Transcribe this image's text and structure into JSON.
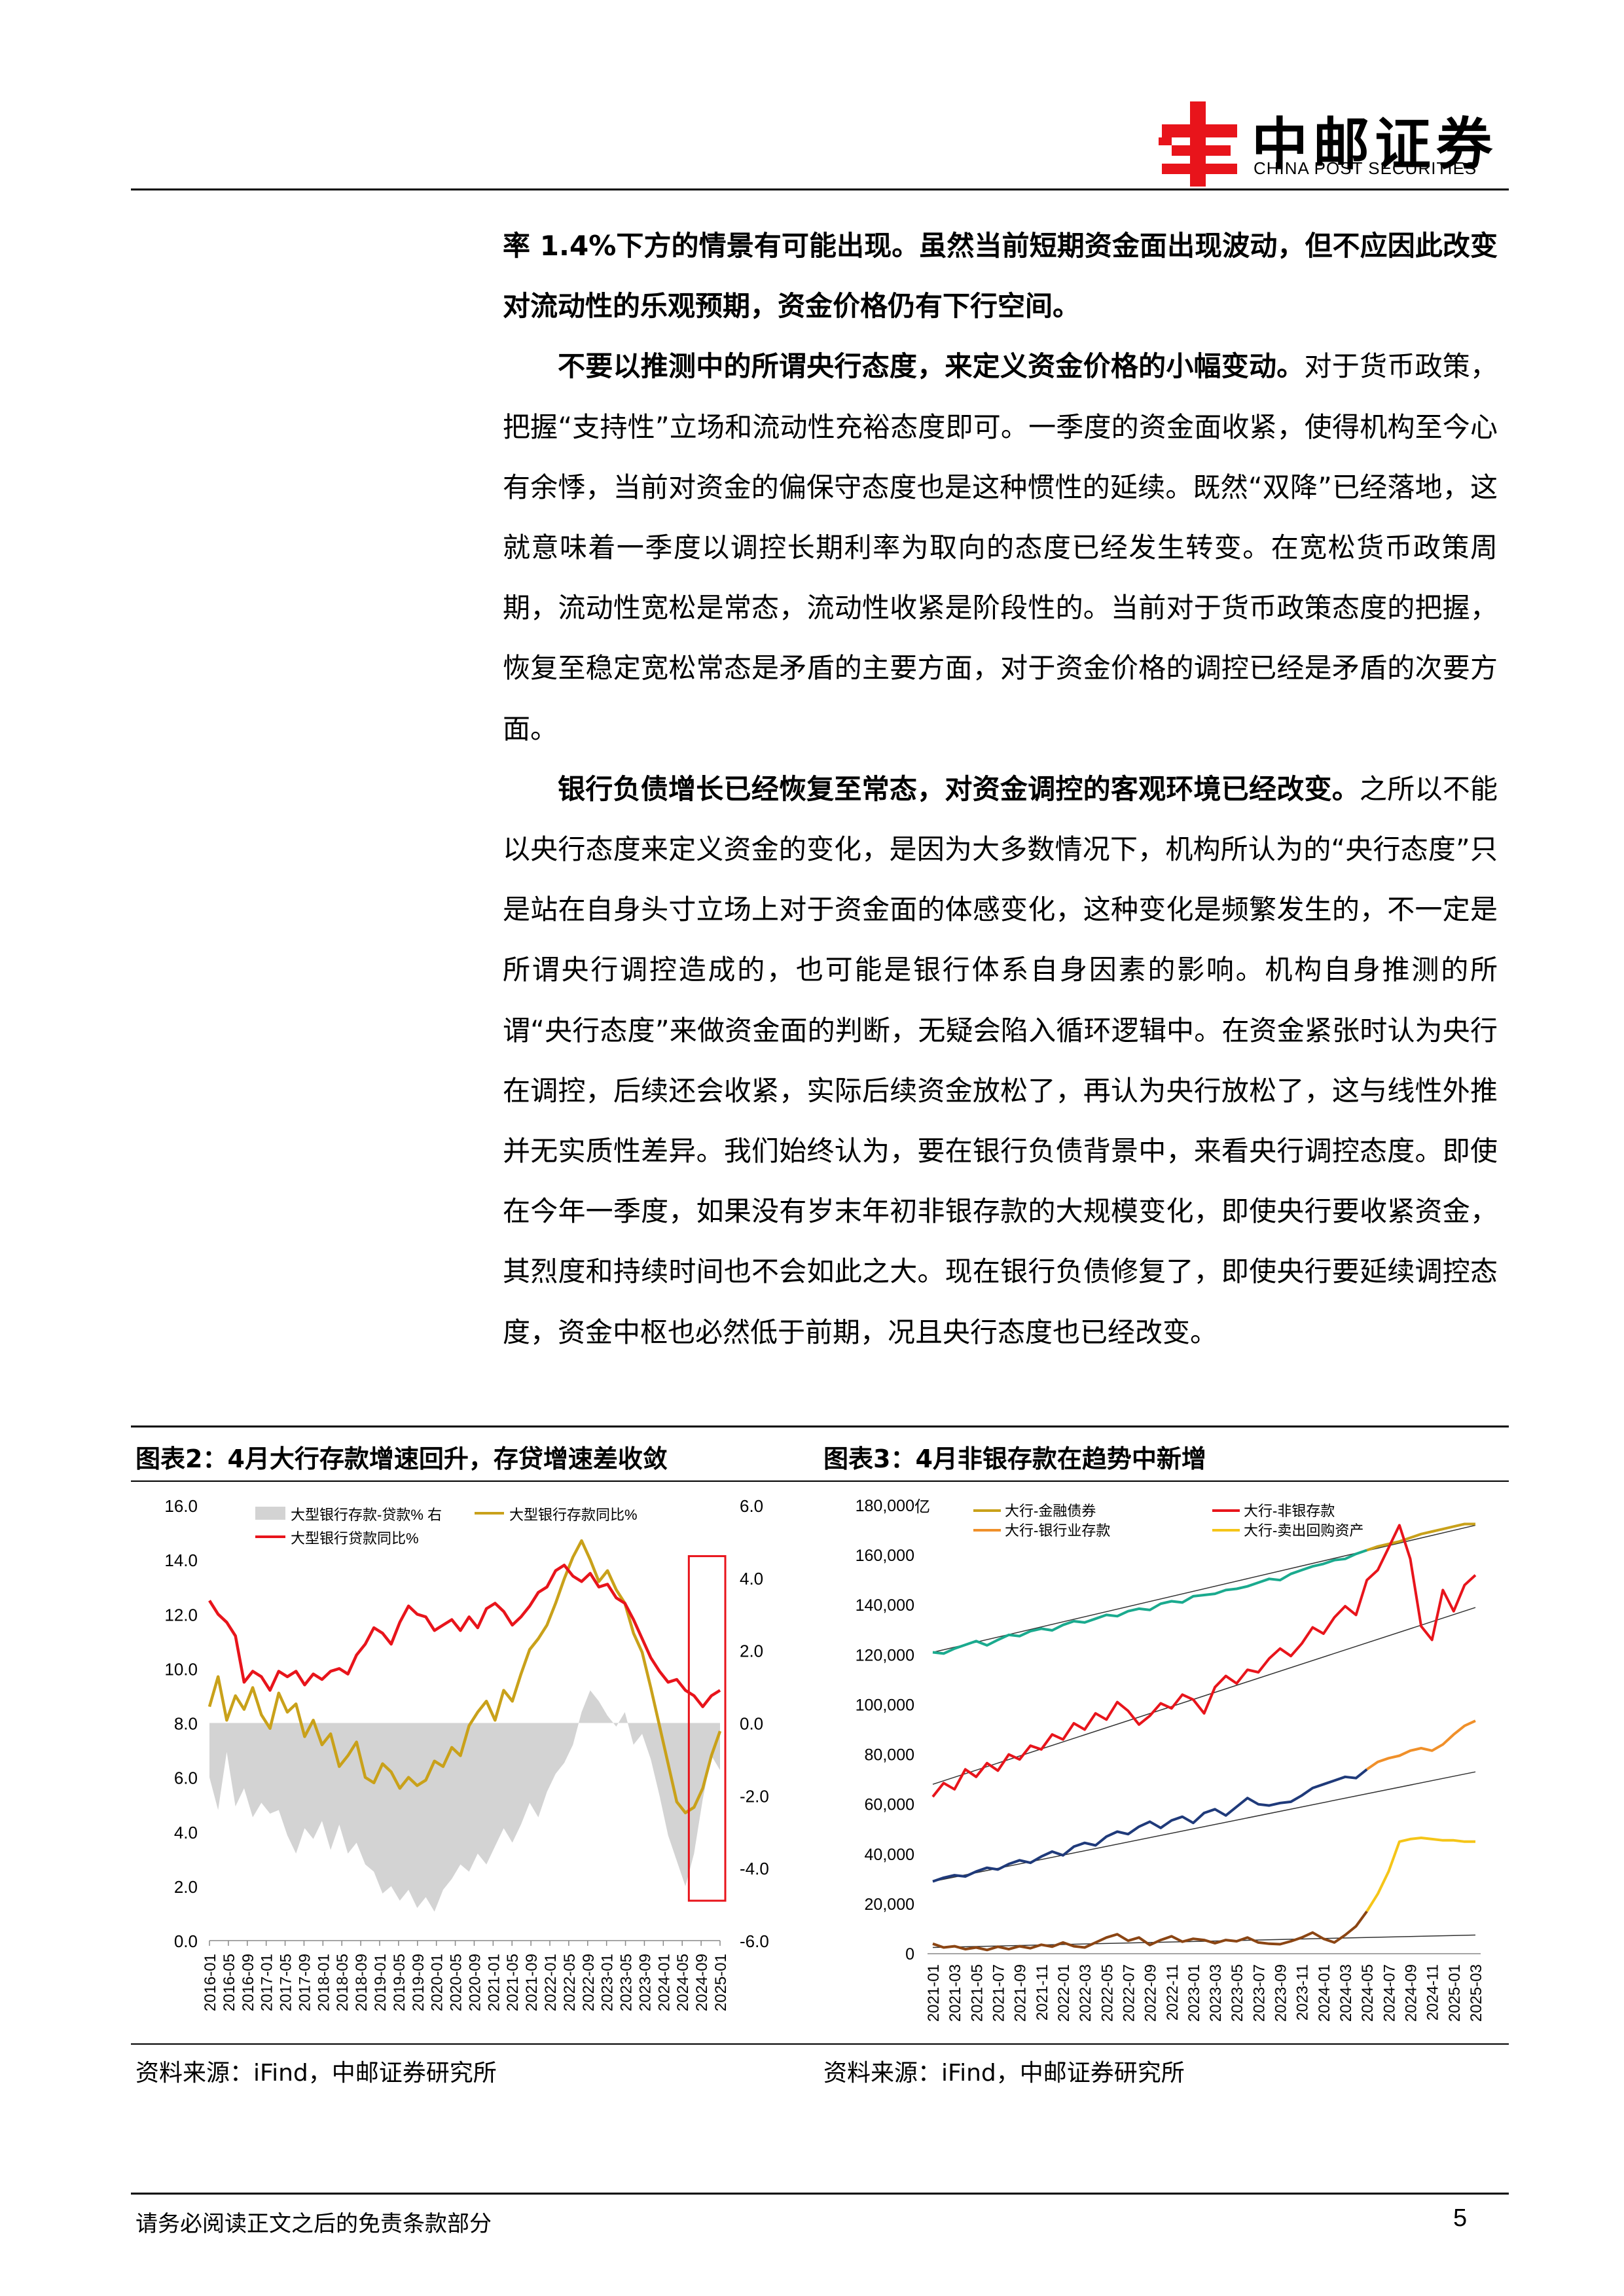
{
  "header": {
    "logo_zh": "中邮证券",
    "logo_en": "CHINA POST SECURITIES"
  },
  "body": {
    "para1": "率 1.4%下方的情景有可能出现。虽然当前短期资金面出现波动，但不应因此改变对流动性的乐观预期，资金价格仍有下行空间。",
    "para2_lead": "不要以推测中的所谓央行态度，来定义资金价格的小幅变动。",
    "para2_rest": "对于货币政策，把握“支持性”立场和流动性充裕态度即可。一季度的资金面收紧，使得机构至今心有余悸，当前对资金的偏保守态度也是这种惯性的延续。既然“双降”已经落地，这就意味着一季度以调控长期利率为取向的态度已经发生转变。在宽松货币政策周期，流动性宽松是常态，流动性收紧是阶段性的。当前对于货币政策态度的把握，恢复至稳定宽松常态是矛盾的主要方面，对于资金价格的调控已经是矛盾的次要方面。",
    "para3_lead": "银行负债增长已经恢复至常态，对资金调控的客观环境已经改变。",
    "para3_rest": "之所以不能以央行态度来定义资金的变化，是因为大多数情况下，机构所认为的“央行态度”只是站在自身头寸立场上对于资金面的体感变化，这种变化是频繁发生的，不一定是所谓央行调控造成的，也可能是银行体系自身因素的影响。机构自身推测的所谓“央行态度”来做资金面的判断，无疑会陷入循环逻辑中。在资金紧张时认为央行在调控，后续还会收紧，实际后续资金放松了，再认为央行放松了，这与线性外推并无实质性差异。我们始终认为，要在银行负债背景中，来看央行调控态度。即使在今年一季度，如果没有岁末年初非银存款的大规模变化，即使央行要收紧资金，其烈度和持续时间也不会如此之大。现在银行负债修复了，即使央行要延续调控态度，资金中枢也必然低于前期，况且央行态度也已经改变。"
  },
  "figures": {
    "fig2_title": "图表2：4月大行存款增速回升，存贷增速差收敛",
    "fig3_title": "图表3：4月非银存款在趋势中新增",
    "fig2_source": "资料来源：iFind，中邮证券研究所",
    "fig3_source": "资料来源：iFind，中邮证券研究所"
  },
  "chart_data": [
    {
      "type": "line",
      "legend": [
        "大型银行存款-贷款% 右",
        "大型银行存款同比%",
        "大型银行贷款同比%"
      ],
      "ylim_left": [
        0,
        16
      ],
      "yticks_left": [
        "16.0",
        "14.0",
        "12.0",
        "10.0",
        "8.0",
        "6.0",
        "4.0",
        "2.0",
        "0.0"
      ],
      "ylim_right": [
        -6,
        6
      ],
      "yticks_right": [
        "6.0",
        "4.0",
        "2.0",
        "0.0",
        "-2.0",
        "-4.0",
        "-6.0"
      ],
      "xticks": [
        "2016-01",
        "2016-05",
        "2016-09",
        "2017-01",
        "2017-05",
        "2017-09",
        "2018-01",
        "2018-05",
        "2018-09",
        "2019-01",
        "2019-05",
        "2019-09",
        "2020-01",
        "2020-05",
        "2020-09",
        "2021-01",
        "2021-05",
        "2021-09",
        "2022-01",
        "2022-05",
        "2022-09",
        "2023-01",
        "2023-05",
        "2023-09",
        "2024-01",
        "2024-05",
        "2024-09",
        "2025-01"
      ],
      "colors": {
        "gap": "#d3d3d3",
        "deposit": "#c9a11a",
        "loan": "#e8141b",
        "highlight": "#e8141b"
      },
      "series": [
        {
          "name": "大型银行存款-贷款% 右",
          "values": [
            -1.5,
            -2.4,
            -0.8,
            -2.3,
            -1.8,
            -2.6,
            -2.2,
            -2.5,
            -2.4,
            -3.1,
            -3.6,
            -2.9,
            -3.2,
            -2.7,
            -3.5,
            -2.8,
            -3.6,
            -3.3,
            -3.9,
            -4.1,
            -4.7,
            -4.5,
            -4.9,
            -4.6,
            -5.1,
            -4.8,
            -5.2,
            -4.6,
            -4.3,
            -3.9,
            -4.1,
            -3.6,
            -3.9,
            -3.4,
            -2.9,
            -3.3,
            -2.8,
            -2.2,
            -2.6,
            -1.9,
            -1.4,
            -1.1,
            -0.6,
            0.3,
            0.9,
            0.6,
            0.2,
            -0.1,
            0.3,
            -0.6,
            -0.3,
            -1.0,
            -2.0,
            -3.1,
            -3.8,
            -4.5,
            -3.6,
            -2.1,
            -0.9,
            -1.3
          ]
        },
        {
          "name": "大型银行存款同比%",
          "values": [
            8.6,
            9.7,
            8.1,
            9.0,
            8.5,
            9.3,
            8.3,
            7.8,
            9.1,
            8.4,
            8.7,
            7.5,
            8.1,
            7.2,
            7.6,
            6.4,
            6.8,
            7.3,
            6.0,
            5.8,
            6.5,
            6.2,
            5.6,
            6.0,
            5.7,
            5.9,
            6.6,
            6.4,
            7.1,
            6.8,
            7.9,
            8.4,
            8.8,
            8.1,
            9.2,
            8.8,
            9.8,
            10.7,
            11.1,
            11.6,
            12.4,
            13.3,
            14.1,
            14.7,
            14.0,
            13.2,
            13.6,
            12.9,
            12.4,
            11.3,
            10.6,
            9.3,
            7.9,
            6.5,
            5.1,
            4.7,
            4.9,
            5.6,
            6.8,
            7.7
          ]
        },
        {
          "name": "大型银行贷款同比%",
          "values": [
            12.5,
            12.0,
            11.7,
            11.2,
            9.5,
            9.9,
            9.7,
            9.2,
            9.9,
            9.7,
            9.9,
            9.4,
            9.8,
            9.6,
            9.9,
            10.0,
            9.8,
            10.5,
            10.9,
            11.5,
            11.3,
            10.9,
            11.7,
            12.3,
            12.0,
            11.9,
            11.4,
            11.6,
            11.8,
            11.4,
            11.9,
            11.5,
            12.2,
            12.4,
            12.1,
            11.6,
            11.9,
            12.3,
            12.8,
            13.0,
            13.6,
            13.8,
            13.4,
            13.2,
            13.5,
            13.0,
            13.1,
            12.6,
            12.4,
            11.8,
            11.1,
            10.4,
            9.9,
            9.5,
            9.6,
            9.2,
            9.0,
            8.6,
            9.0,
            9.2
          ]
        }
      ]
    },
    {
      "type": "line",
      "unit_label": "亿",
      "legend": [
        "大行-金融债券",
        "大行-银行业存款",
        "大行-非银存款",
        "大行-卖出回购资产"
      ],
      "ylim": [
        0,
        180000
      ],
      "yticks": [
        "180,000",
        "160,000",
        "140,000",
        "120,000",
        "100,000",
        "80,000",
        "60,000",
        "40,000",
        "20,000",
        "0"
      ],
      "xticks": [
        "2021-01",
        "2021-03",
        "2021-05",
        "2021-07",
        "2021-09",
        "2021-11",
        "2022-01",
        "2022-03",
        "2022-05",
        "2022-07",
        "2022-09",
        "2022-11",
        "2023-01",
        "2023-03",
        "2023-05",
        "2023-07",
        "2023-09",
        "2023-11",
        "2024-01",
        "2024-03",
        "2024-05",
        "2024-07",
        "2024-09",
        "2024-11",
        "2025-01",
        "2025-03"
      ],
      "colors": {
        "bonds": "#c9a11a",
        "interbank": "#f0902a",
        "nonbank": "#e8141b",
        "repo": "#f5c518",
        "bonds_before": "#1aaa8e",
        "interbank_before": "#1f3a7a",
        "repo_before": "#8b4513",
        "trend": "#333333"
      },
      "series": [
        {
          "name": "大行-金融债券",
          "values": [
            121000,
            120500,
            122500,
            124000,
            125500,
            123800,
            126000,
            128000,
            127500,
            129500,
            130500,
            129800,
            132000,
            133500,
            133000,
            134500,
            136000,
            135500,
            137500,
            138500,
            138000,
            140500,
            141500,
            141000,
            143500,
            144000,
            144500,
            146000,
            146500,
            147500,
            149000,
            150500,
            150000,
            152500,
            154000,
            155500,
            156500,
            158000,
            158500,
            160500,
            162000,
            163500,
            164500,
            165500,
            167000,
            168500,
            169500,
            170500,
            171500,
            172500,
            172500
          ]
        },
        {
          "name": "大行-银行业存款",
          "values": [
            29000,
            30500,
            31500,
            31000,
            33000,
            34500,
            33800,
            36000,
            37500,
            36500,
            39000,
            41000,
            39500,
            43000,
            44500,
            43500,
            47000,
            49000,
            48000,
            51000,
            53000,
            50500,
            53500,
            55000,
            52500,
            56500,
            58000,
            55500,
            59000,
            62500,
            60000,
            59500,
            60500,
            61000,
            63500,
            66500,
            68000,
            69500,
            71000,
            70500,
            74000,
            77000,
            78500,
            79500,
            81500,
            82500,
            81500,
            84000,
            88000,
            91500,
            93500
          ]
        },
        {
          "name": "大行-非银存款",
          "values": [
            63000,
            68500,
            66000,
            74000,
            71000,
            76500,
            73500,
            80000,
            78000,
            83500,
            82000,
            88000,
            86000,
            92500,
            90000,
            96500,
            94000,
            101000,
            97500,
            92000,
            95500,
            100500,
            98500,
            104000,
            102000,
            96500,
            107000,
            111500,
            108500,
            114000,
            113000,
            118500,
            122500,
            119500,
            124500,
            131000,
            128500,
            135000,
            139500,
            136000,
            150000,
            154000,
            163000,
            172000,
            158500,
            131500,
            126000,
            146000,
            137500,
            148000,
            152000
          ]
        },
        {
          "name": "大行-卖出回购资产",
          "values": [
            4000,
            2500,
            3000,
            1800,
            2500,
            1500,
            2800,
            1800,
            3000,
            2200,
            3600,
            2800,
            4500,
            3000,
            2500,
            4500,
            6500,
            7800,
            5200,
            6500,
            3500,
            5500,
            7000,
            4800,
            6000,
            5500,
            4200,
            5500,
            5000,
            6500,
            4500,
            4000,
            3800,
            5000,
            6500,
            8500,
            6000,
            4500,
            7500,
            11000,
            17000,
            24000,
            33000,
            45000,
            46000,
            46500,
            46000,
            45500,
            45500,
            45000,
            45000
          ]
        }
      ]
    }
  ],
  "footer": {
    "disclaimer": "请务必阅读正文之后的免责条款部分",
    "page": "5"
  }
}
